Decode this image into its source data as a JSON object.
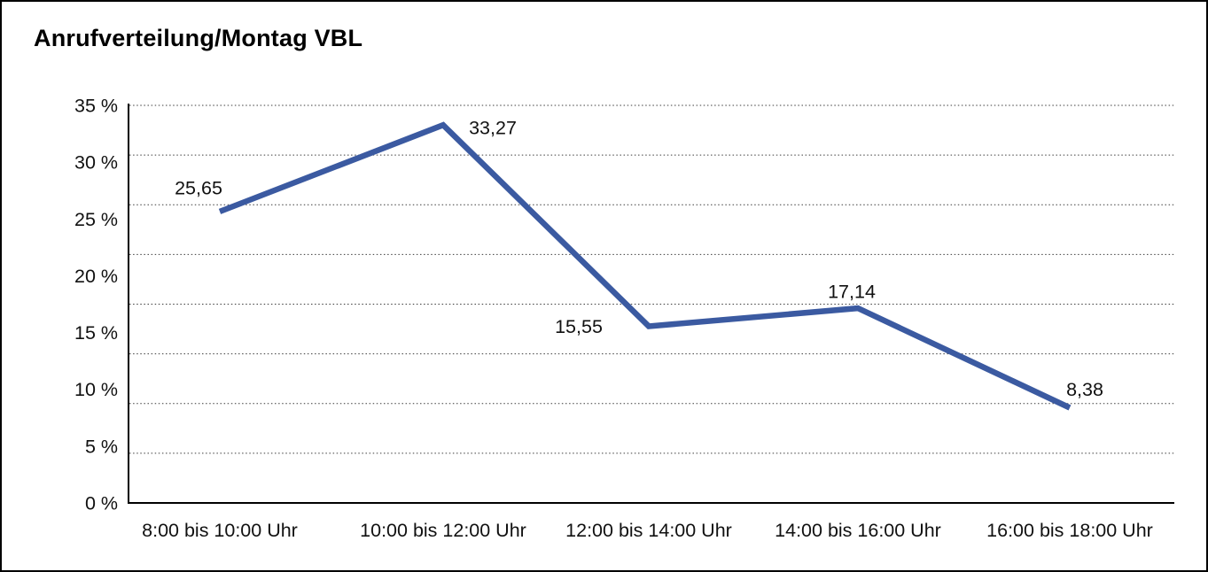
{
  "title": "Anrufverteilung/Montag VBL",
  "chart_data": {
    "type": "line",
    "title": "Anrufverteilung/Montag VBL",
    "categories": [
      "8:00 bis 10:00 Uhr",
      "10:00 bis 12:00 Uhr",
      "12:00 bis 14:00 Uhr",
      "14:00 bis 16:00 Uhr",
      "16:00 bis 18:00 Uhr"
    ],
    "values": [
      25.65,
      33.27,
      15.55,
      17.14,
      8.38
    ],
    "value_labels": [
      "25,65",
      "33,27",
      "15,55",
      "17,14",
      "8,38"
    ],
    "ytick_values": [
      35,
      30,
      25,
      20,
      15,
      10,
      5,
      0
    ],
    "ytick_labels": [
      "35 %",
      "30 %",
      "25 %",
      "20 %",
      "15 %",
      "10 %",
      "5 %",
      "0 %"
    ],
    "ylim": [
      0,
      35
    ],
    "xlabel": "",
    "ylabel": "",
    "legend": "none",
    "grid": "horizontal-dotted",
    "line_color": "#3b5aa1"
  }
}
